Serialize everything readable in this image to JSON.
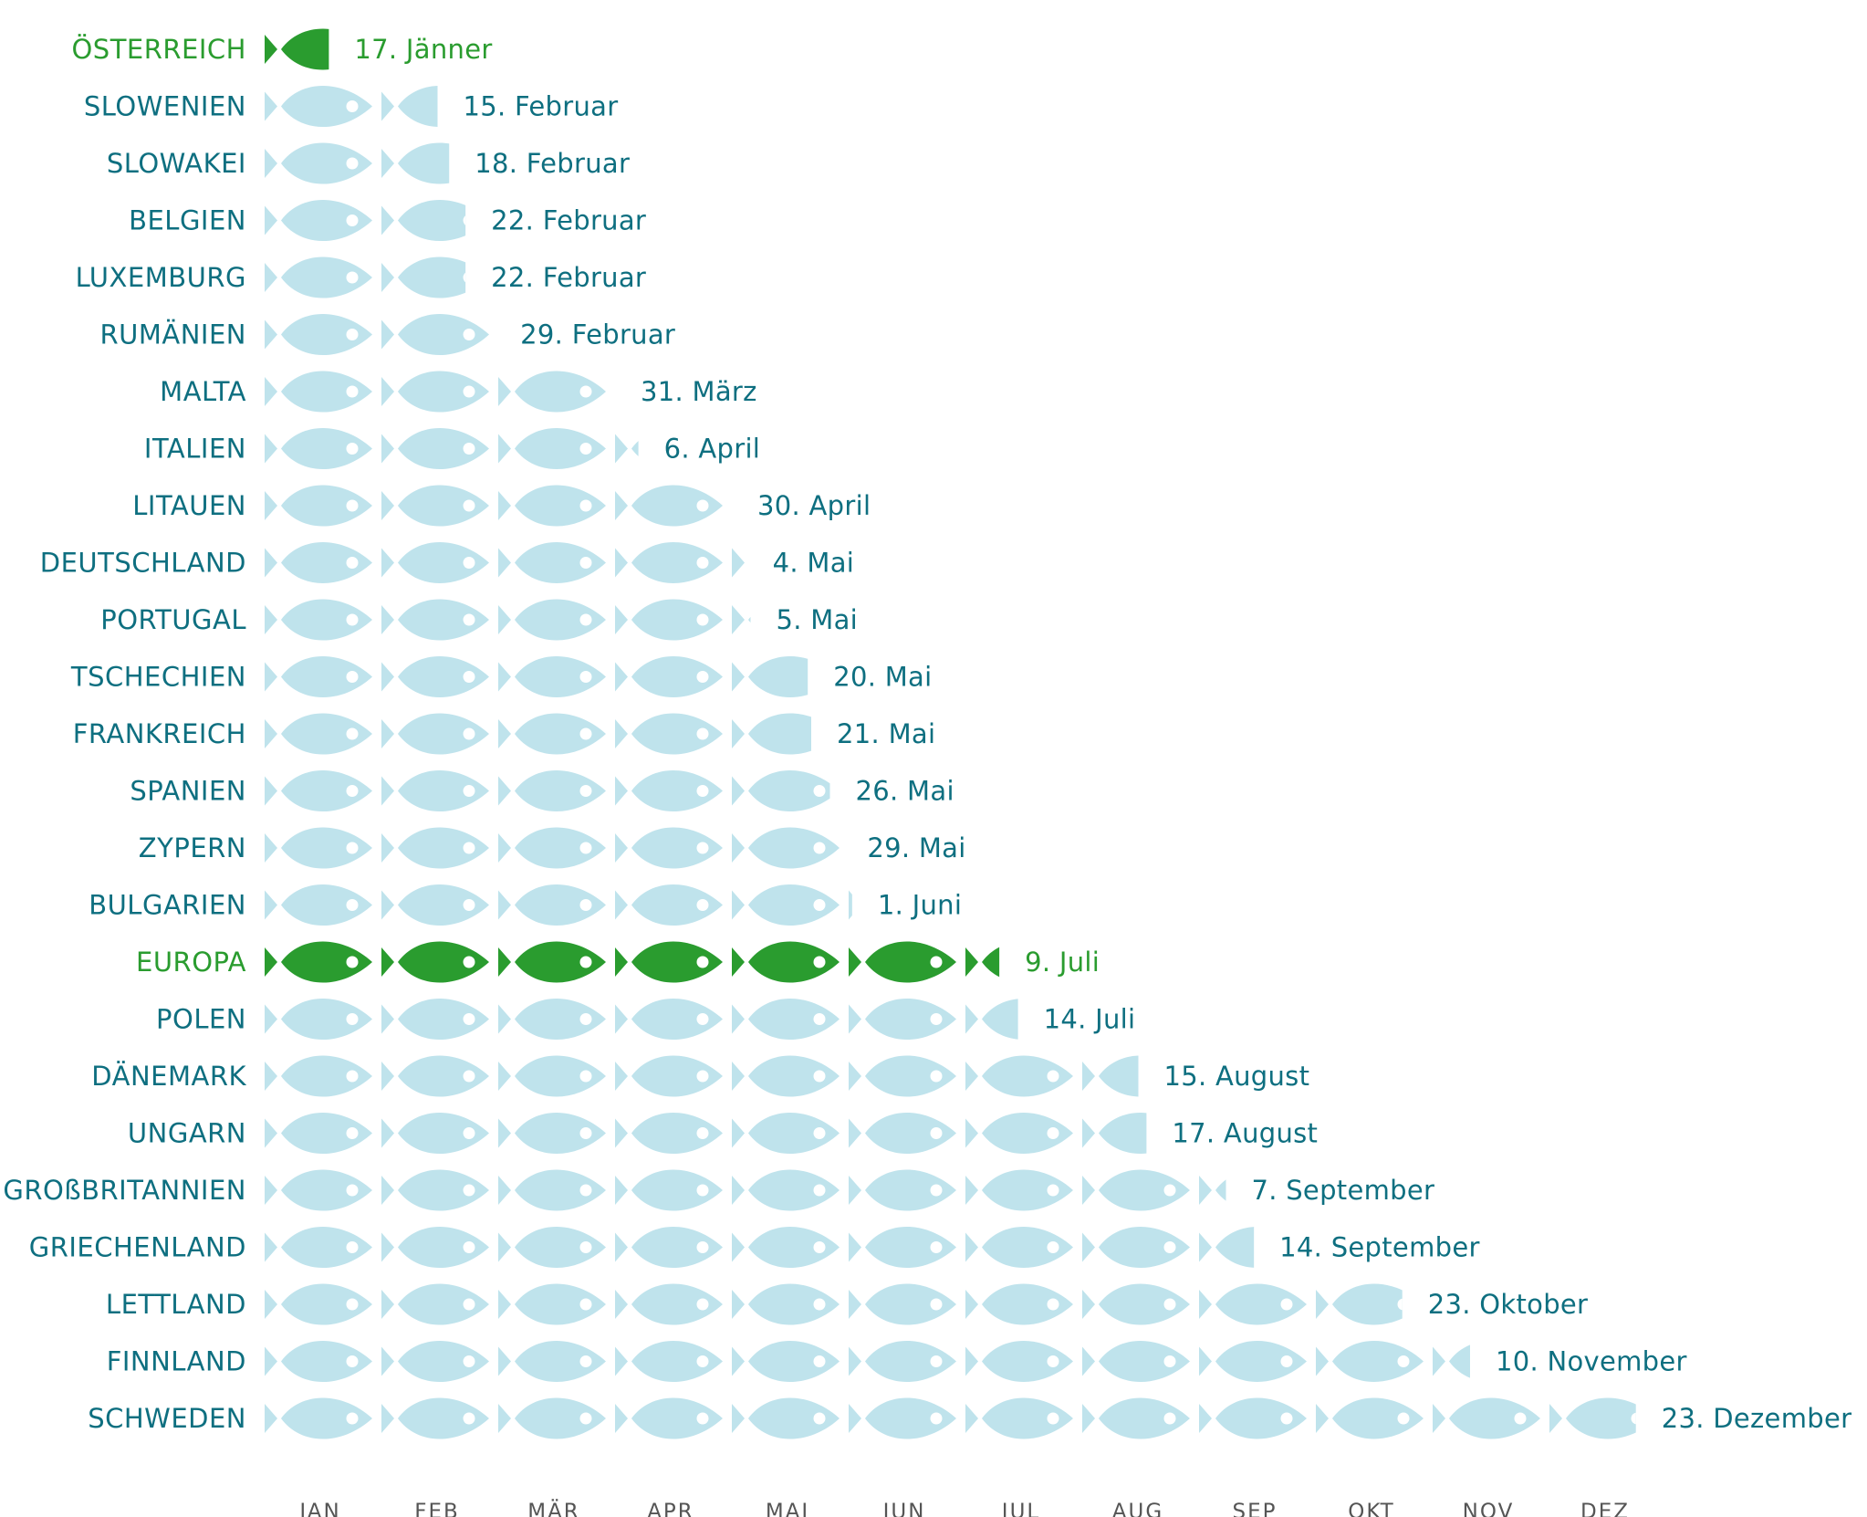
{
  "colors": {
    "text": "#0e6f80",
    "highlight": "#2a9c2f",
    "fish": "#bfe3ec",
    "fish_highlight": "#2a9c2f"
  },
  "icons": {
    "unit": "fish-icon"
  },
  "chart_data": {
    "type": "pictogram-bar",
    "x": [
      "JAN",
      "FEB",
      "MÄR",
      "APR",
      "MAI",
      "JUN",
      "JUL",
      "AUG",
      "SEP",
      "OKT",
      "NOV",
      "DEZ"
    ],
    "xlim_months": [
      0,
      12
    ],
    "rows": [
      {
        "country": "ÖSTERREICH",
        "date": "17. Jänner",
        "months": 0.55,
        "highlight": true
      },
      {
        "country": "SLOWENIEN",
        "date": "15. Februar",
        "months": 1.48
      },
      {
        "country": "SLOWAKEI",
        "date": "18. Februar",
        "months": 1.58
      },
      {
        "country": "BELGIEN",
        "date": "22. Februar",
        "months": 1.72
      },
      {
        "country": "LUXEMBURG",
        "date": "22. Februar",
        "months": 1.72
      },
      {
        "country": "RUMÄNIEN",
        "date": "29. Februar",
        "months": 1.97
      },
      {
        "country": "MALTA",
        "date": "31. März",
        "months": 3.0
      },
      {
        "country": "ITALIEN",
        "date": "6. April",
        "months": 3.2
      },
      {
        "country": "LITAUEN",
        "date": "30. April",
        "months": 4.0
      },
      {
        "country": "DEUTSCHLAND",
        "date": "4. Mai",
        "months": 4.13
      },
      {
        "country": "PORTUGAL",
        "date": "5. Mai",
        "months": 4.16
      },
      {
        "country": "TSCHECHIEN",
        "date": "20. Mai",
        "months": 4.65
      },
      {
        "country": "FRANKREICH",
        "date": "21. Mai",
        "months": 4.68
      },
      {
        "country": "SPANIEN",
        "date": "26. Mai",
        "months": 4.84
      },
      {
        "country": "ZYPERN",
        "date": "29. Mai",
        "months": 4.94
      },
      {
        "country": "BULGARIEN",
        "date": "1. Juni",
        "months": 5.03
      },
      {
        "country": "EUROPA",
        "date": "9. Juli",
        "months": 6.29,
        "highlight": true
      },
      {
        "country": "POLEN",
        "date": "14. Juli",
        "months": 6.45
      },
      {
        "country": "DÄNEMARK",
        "date": "15. August",
        "months": 7.48
      },
      {
        "country": "UNGARN",
        "date": "17. August",
        "months": 7.55
      },
      {
        "country": "GROßBRITANNIEN",
        "date": "7. September",
        "months": 8.23
      },
      {
        "country": "GRIECHENLAND",
        "date": "14. September",
        "months": 8.47
      },
      {
        "country": "LETTLAND",
        "date": "23. Oktober",
        "months": 9.74
      },
      {
        "country": "FINNLAND",
        "date": "10. November",
        "months": 10.32
      },
      {
        "country": "SCHWEDEN",
        "date": "23. Dezember",
        "months": 11.74
      }
    ]
  }
}
